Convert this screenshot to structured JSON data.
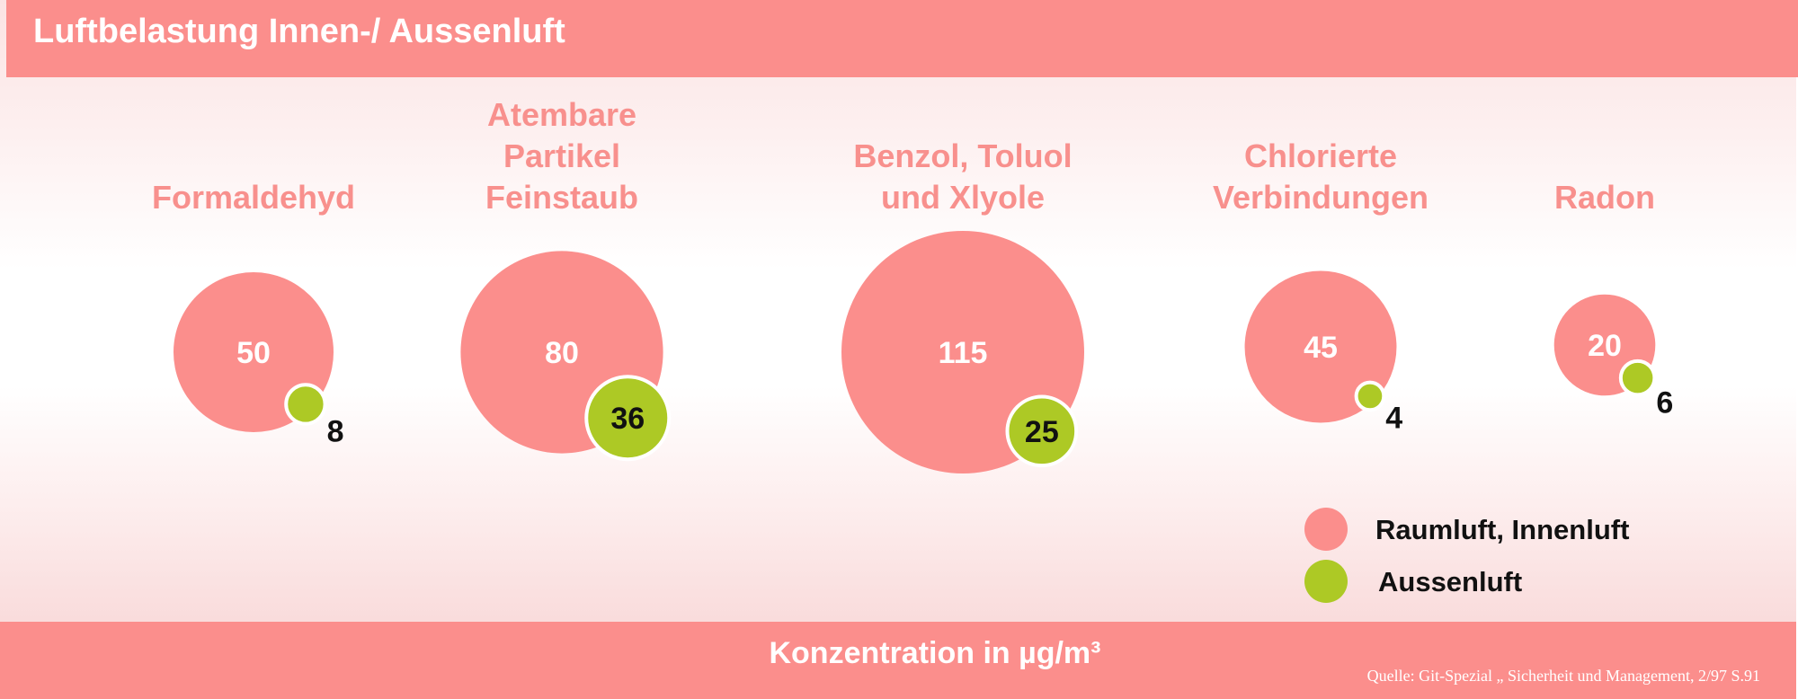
{
  "chart_data": {
    "type": "bubble",
    "title": "Luftbelastung Innen-/ Aussenluft",
    "xlabel": "Konzentration in µg/m³",
    "source": "Quelle: Git-Spezial „ Sicherheit und Management, 2/97 S.91",
    "categories": [
      [
        "Formaldehyd"
      ],
      [
        "Atembare",
        "Partikel",
        "Feinstaub"
      ],
      [
        "Benzol, Toluol",
        "und Xlyole"
      ],
      [
        "Chlorierte",
        "Verbindungen"
      ],
      [
        "Radon"
      ]
    ],
    "series": [
      {
        "name": "Raumluft, Innenluft",
        "color": "#fb8e8c",
        "values": [
          50,
          80,
          115,
          45,
          20
        ]
      },
      {
        "name": "Aussenluft",
        "color": "#adc925",
        "values": [
          8,
          36,
          25,
          4,
          6
        ]
      }
    ]
  }
}
